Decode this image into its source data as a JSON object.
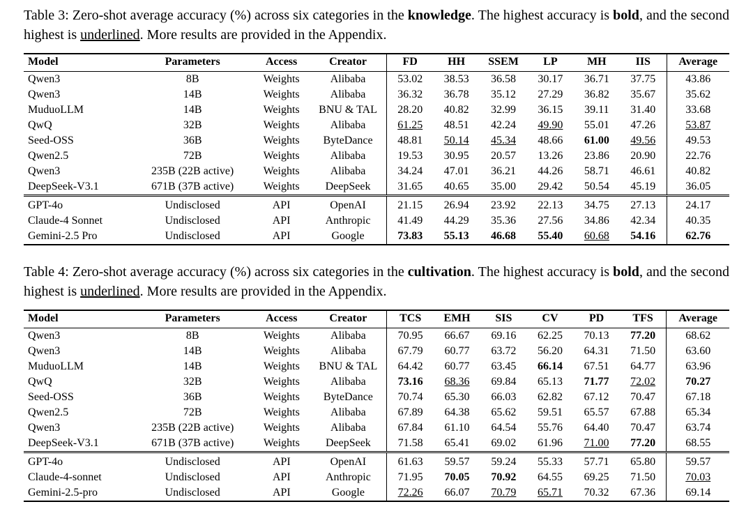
{
  "page": {
    "background": "#ffffff",
    "text_color": "#000000"
  },
  "chart_data": [
    {
      "type": "table",
      "id": 3,
      "caption": [
        {
          "t": "Table 3: Zero-shot average accuracy (%) across six categories in the ",
          "s": ""
        },
        {
          "t": "knowledge",
          "s": "b"
        },
        {
          "t": ". The highest accuracy is ",
          "s": ""
        },
        {
          "t": "bold",
          "s": "b"
        },
        {
          "t": ", and the second highest is ",
          "s": ""
        },
        {
          "t": "underlined",
          "s": "u"
        },
        {
          "t": ". More results are provided in the Appendix.",
          "s": ""
        }
      ],
      "meta_columns": [
        "Model",
        "Parameters",
        "Access",
        "Creator"
      ],
      "score_columns": [
        "FD",
        "HH",
        "SSEM",
        "LP",
        "MH",
        "IIS"
      ],
      "avg_column": "Average",
      "groups": [
        {
          "rows": [
            {
              "model": "Qwen3",
              "parameters": "8B",
              "access": "Weights",
              "creator": "Alibaba",
              "values": [
                "53.02",
                "38.53",
                "36.58",
                "30.17",
                "36.71",
                "37.75",
                "43.86"
              ],
              "fmt": [
                "",
                "",
                "",
                "",
                "",
                "",
                ""
              ]
            },
            {
              "model": "Qwen3",
              "parameters": "14B",
              "access": "Weights",
              "creator": "Alibaba",
              "values": [
                "36.32",
                "36.78",
                "35.12",
                "27.29",
                "36.82",
                "35.67",
                "35.62"
              ],
              "fmt": [
                "",
                "",
                "",
                "",
                "",
                "",
                ""
              ]
            },
            {
              "model": "MuduoLLM",
              "parameters": "14B",
              "access": "Weights",
              "creator": "BNU & TAL",
              "values": [
                "28.20",
                "40.82",
                "32.99",
                "36.15",
                "39.11",
                "31.40",
                "33.68"
              ],
              "fmt": [
                "",
                "",
                "",
                "",
                "",
                "",
                ""
              ]
            },
            {
              "model": "QwQ",
              "parameters": "32B",
              "access": "Weights",
              "creator": "Alibaba",
              "values": [
                "61.25",
                "48.51",
                "42.24",
                "49.90",
                "55.01",
                "47.26",
                "53.87"
              ],
              "fmt": [
                "u",
                "",
                "",
                "u",
                "",
                "",
                "u"
              ]
            },
            {
              "model": "Seed-OSS",
              "parameters": "36B",
              "access": "Weights",
              "creator": "ByteDance",
              "values": [
                "48.81",
                "50.14",
                "45.34",
                "48.66",
                "61.00",
                "49.56",
                "49.53"
              ],
              "fmt": [
                "",
                "u",
                "u",
                "",
                "b",
                "u",
                ""
              ]
            },
            {
              "model": "Qwen2.5",
              "parameters": "72B",
              "access": "Weights",
              "creator": "Alibaba",
              "values": [
                "19.53",
                "30.95",
                "20.57",
                "13.26",
                "23.86",
                "20.90",
                "22.76"
              ],
              "fmt": [
                "",
                "",
                "",
                "",
                "",
                "",
                ""
              ]
            },
            {
              "model": "Qwen3",
              "parameters": "235B (22B active)",
              "access": "Weights",
              "creator": "Alibaba",
              "values": [
                "34.24",
                "47.01",
                "36.21",
                "44.26",
                "58.71",
                "46.61",
                "40.82"
              ],
              "fmt": [
                "",
                "",
                "",
                "",
                "",
                "",
                ""
              ]
            },
            {
              "model": "DeepSeek-V3.1",
              "parameters": "671B (37B active)",
              "access": "Weights",
              "creator": "DeepSeek",
              "values": [
                "31.65",
                "40.65",
                "35.00",
                "29.42",
                "50.54",
                "45.19",
                "36.05"
              ],
              "fmt": [
                "",
                "",
                "",
                "",
                "",
                "",
                ""
              ]
            }
          ]
        },
        {
          "rows": [
            {
              "model": "GPT-4o",
              "parameters": "Undisclosed",
              "access": "API",
              "creator": "OpenAI",
              "values": [
                "21.15",
                "26.94",
                "23.92",
                "22.13",
                "34.75",
                "27.13",
                "24.17"
              ],
              "fmt": [
                "",
                "",
                "",
                "",
                "",
                "",
                ""
              ]
            },
            {
              "model": "Claude-4 Sonnet",
              "parameters": "Undisclosed",
              "access": "API",
              "creator": "Anthropic",
              "values": [
                "41.49",
                "44.29",
                "35.36",
                "27.56",
                "34.86",
                "42.34",
                "40.35"
              ],
              "fmt": [
                "",
                "",
                "",
                "",
                "",
                "",
                ""
              ]
            },
            {
              "model": "Gemini-2.5 Pro",
              "parameters": "Undisclosed",
              "access": "API",
              "creator": "Google",
              "values": [
                "73.83",
                "55.13",
                "46.68",
                "55.40",
                "60.68",
                "54.16",
                "62.76"
              ],
              "fmt": [
                "b",
                "b",
                "b",
                "b",
                "u",
                "b",
                "b"
              ]
            }
          ]
        }
      ]
    },
    {
      "type": "table",
      "id": 4,
      "caption": [
        {
          "t": "Table 4: Zero-shot average accuracy (%) across six categories in the ",
          "s": ""
        },
        {
          "t": "cultivation",
          "s": "b"
        },
        {
          "t": ". The highest accuracy is ",
          "s": ""
        },
        {
          "t": "bold",
          "s": "b"
        },
        {
          "t": ", and the second highest is ",
          "s": ""
        },
        {
          "t": "underlined",
          "s": "u"
        },
        {
          "t": ". More results are provided in the Appendix.",
          "s": ""
        }
      ],
      "meta_columns": [
        "Model",
        "Parameters",
        "Access",
        "Creator"
      ],
      "score_columns": [
        "TCS",
        "EMH",
        "SIS",
        "CV",
        "PD",
        "TFS"
      ],
      "avg_column": "Average",
      "groups": [
        {
          "rows": [
            {
              "model": "Qwen3",
              "parameters": "8B",
              "access": "Weights",
              "creator": "Alibaba",
              "values": [
                "70.95",
                "66.67",
                "69.16",
                "62.25",
                "70.13",
                "77.20",
                "68.62"
              ],
              "fmt": [
                "",
                "",
                "",
                "",
                "",
                "b",
                ""
              ]
            },
            {
              "model": "Qwen3",
              "parameters": "14B",
              "access": "Weights",
              "creator": "Alibaba",
              "values": [
                "67.79",
                "60.77",
                "63.72",
                "56.20",
                "64.31",
                "71.50",
                "63.60"
              ],
              "fmt": [
                "",
                "",
                "",
                "",
                "",
                "",
                ""
              ]
            },
            {
              "model": "MuduoLLM",
              "parameters": "14B",
              "access": "Weights",
              "creator": "BNU & TAL",
              "values": [
                "64.42",
                "60.77",
                "63.45",
                "66.14",
                "67.51",
                "64.77",
                "63.96"
              ],
              "fmt": [
                "",
                "",
                "",
                "b",
                "",
                "",
                ""
              ]
            },
            {
              "model": "QwQ",
              "parameters": "32B",
              "access": "Weights",
              "creator": "Alibaba",
              "values": [
                "73.16",
                "68.36",
                "69.84",
                "65.13",
                "71.77",
                "72.02",
                "70.27"
              ],
              "fmt": [
                "b",
                "u",
                "",
                "",
                "b",
                "u",
                "b"
              ]
            },
            {
              "model": "Seed-OSS",
              "parameters": "36B",
              "access": "Weights",
              "creator": "ByteDance",
              "values": [
                "70.74",
                "65.30",
                "66.03",
                "62.82",
                "67.12",
                "70.47",
                "67.18"
              ],
              "fmt": [
                "",
                "",
                "",
                "",
                "",
                "",
                ""
              ]
            },
            {
              "model": "Qwen2.5",
              "parameters": "72B",
              "access": "Weights",
              "creator": "Alibaba",
              "values": [
                "67.89",
                "64.38",
                "65.62",
                "59.51",
                "65.57",
                "67.88",
                "65.34"
              ],
              "fmt": [
                "",
                "",
                "",
                "",
                "",
                "",
                ""
              ]
            },
            {
              "model": "Qwen3",
              "parameters": "235B (22B active)",
              "access": "Weights",
              "creator": "Alibaba",
              "values": [
                "67.84",
                "61.10",
                "64.54",
                "55.76",
                "64.40",
                "70.47",
                "63.74"
              ],
              "fmt": [
                "",
                "",
                "",
                "",
                "",
                "",
                ""
              ]
            },
            {
              "model": "DeepSeek-V3.1",
              "parameters": "671B (37B active)",
              "access": "Weights",
              "creator": "DeepSeek",
              "values": [
                "71.58",
                "65.41",
                "69.02",
                "61.96",
                "71.00",
                "77.20",
                "68.55"
              ],
              "fmt": [
                "",
                "",
                "",
                "",
                "u",
                "b",
                ""
              ]
            }
          ]
        },
        {
          "rows": [
            {
              "model": "GPT-4o",
              "parameters": "Undisclosed",
              "access": "API",
              "creator": "OpenAI",
              "values": [
                "61.63",
                "59.57",
                "59.24",
                "55.33",
                "57.71",
                "65.80",
                "59.57"
              ],
              "fmt": [
                "",
                "",
                "",
                "",
                "",
                "",
                ""
              ]
            },
            {
              "model": "Claude-4-sonnet",
              "parameters": "Undisclosed",
              "access": "API",
              "creator": "Anthropic",
              "values": [
                "71.95",
                "70.05",
                "70.92",
                "64.55",
                "69.25",
                "71.50",
                "70.03"
              ],
              "fmt": [
                "",
                "b",
                "b",
                "",
                "",
                "",
                "u"
              ]
            },
            {
              "model": "Gemini-2.5-pro",
              "parameters": "Undisclosed",
              "access": "API",
              "creator": "Google",
              "values": [
                "72.26",
                "66.07",
                "70.79",
                "65.71",
                "70.32",
                "67.36",
                "69.14"
              ],
              "fmt": [
                "u",
                "",
                "u",
                "u",
                "",
                "",
                ""
              ]
            }
          ]
        }
      ]
    }
  ]
}
